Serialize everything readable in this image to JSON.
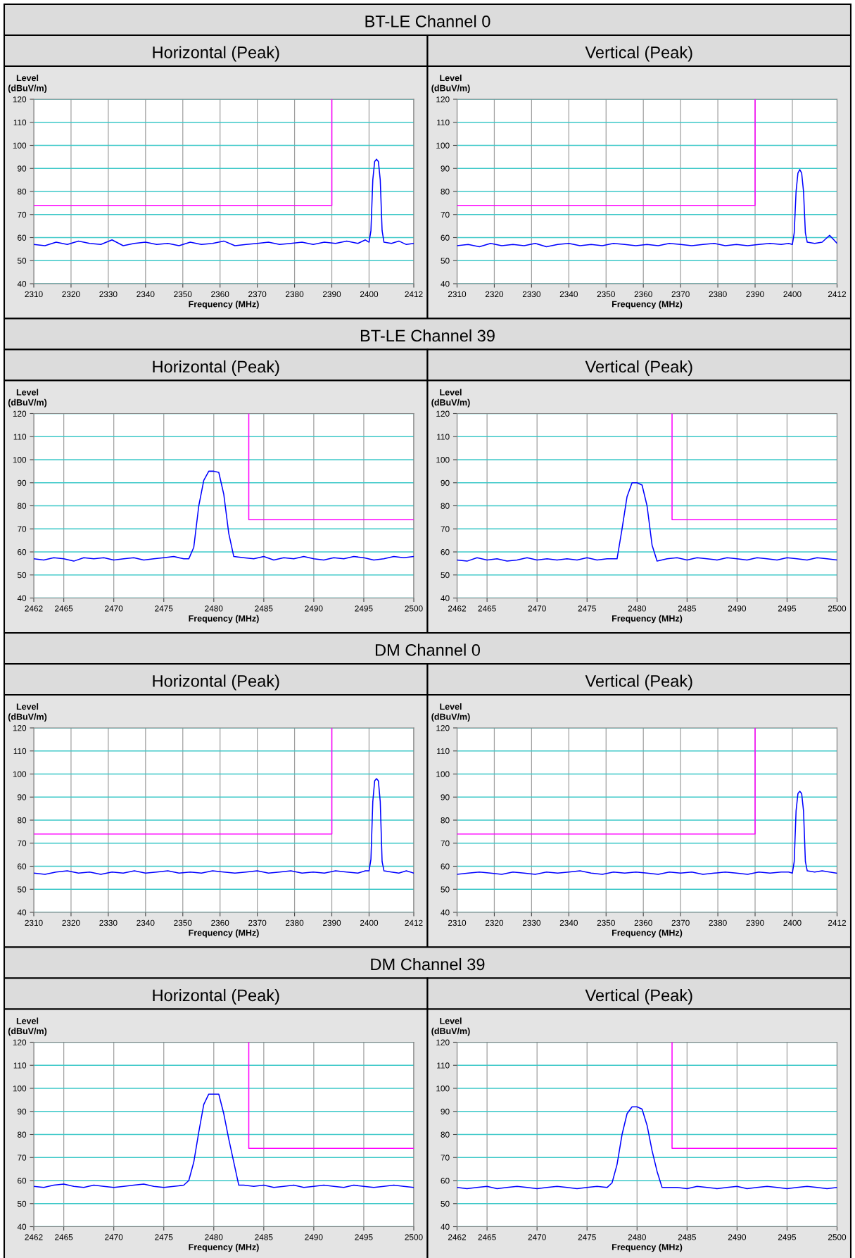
{
  "chart_data": [
    {
      "type": "line",
      "title": "BT-LE Channel 0",
      "subtitle": "Horizontal (Peak)",
      "xlabel": "Frequency (MHz)",
      "ylabel": "Level\n(dBuV/m)",
      "xlim": [
        2310,
        2412
      ],
      "xticks": [
        2310,
        2320,
        2330,
        2340,
        2350,
        2360,
        2370,
        2380,
        2390,
        2400,
        2412
      ],
      "ylim": [
        40,
        120
      ],
      "yticks": [
        40,
        50,
        60,
        70,
        80,
        90,
        100,
        110,
        120
      ],
      "grid": true,
      "series": [
        {
          "color": "#0000ff",
          "x": [
            2310,
            2313,
            2316,
            2319,
            2322,
            2325,
            2328,
            2331,
            2334,
            2337,
            2340,
            2343,
            2346,
            2349,
            2352,
            2355,
            2358,
            2361,
            2364,
            2367,
            2370,
            2373,
            2376,
            2379,
            2382,
            2385,
            2388,
            2391,
            2394,
            2397,
            2399,
            2400,
            2400.5,
            2401,
            2401.5,
            2402,
            2402.5,
            2403,
            2403.5,
            2404,
            2406,
            2408,
            2410,
            2412
          ],
          "values": [
            57,
            56.5,
            58,
            57,
            58.5,
            57.5,
            57,
            59,
            56.5,
            57.5,
            58,
            57,
            57.5,
            56.5,
            58,
            57,
            57.5,
            58.5,
            56.5,
            57,
            57.5,
            58,
            57,
            57.5,
            58,
            57,
            58,
            57.5,
            58.5,
            57.5,
            59,
            58,
            63,
            85,
            93,
            94,
            93,
            85,
            63,
            58,
            57.5,
            58.5,
            57,
            57.5
          ]
        },
        {
          "color": "#ff00ff",
          "x": [
            2310,
            2390,
            2390
          ],
          "values": [
            74,
            74,
            120
          ]
        }
      ]
    },
    {
      "type": "line",
      "subtitle": "Vertical (Peak)",
      "xlabel": "Frequency (MHz)",
      "ylabel": "Level\n(dBuV/m)",
      "xlim": [
        2310,
        2412
      ],
      "xticks": [
        2310,
        2320,
        2330,
        2340,
        2350,
        2360,
        2370,
        2380,
        2390,
        2400,
        2412
      ],
      "ylim": [
        40,
        120
      ],
      "yticks": [
        40,
        50,
        60,
        70,
        80,
        90,
        100,
        110,
        120
      ],
      "grid": true,
      "series": [
        {
          "color": "#0000ff",
          "x": [
            2310,
            2313,
            2316,
            2319,
            2322,
            2325,
            2328,
            2331,
            2334,
            2337,
            2340,
            2343,
            2346,
            2349,
            2352,
            2355,
            2358,
            2361,
            2364,
            2367,
            2370,
            2373,
            2376,
            2379,
            2382,
            2385,
            2388,
            2391,
            2394,
            2397,
            2399,
            2400,
            2400.5,
            2401,
            2401.5,
            2402,
            2402.5,
            2403,
            2403.5,
            2404,
            2406,
            2408,
            2410,
            2412
          ],
          "values": [
            56.5,
            57,
            56,
            57.5,
            56.5,
            57,
            56.5,
            57.5,
            56,
            57,
            57.5,
            56.5,
            57,
            56.5,
            57.5,
            57,
            56.5,
            57,
            56.5,
            57.5,
            57,
            56.5,
            57,
            57.5,
            56.5,
            57,
            56.5,
            57,
            57.5,
            57,
            57.5,
            57,
            62,
            80,
            88,
            89.5,
            88,
            80,
            62,
            58,
            57.5,
            58,
            61,
            57.5
          ]
        },
        {
          "color": "#ff00ff",
          "x": [
            2310,
            2390,
            2390
          ],
          "values": [
            74,
            74,
            120
          ]
        }
      ]
    },
    {
      "type": "line",
      "title": "BT-LE Channel 39",
      "subtitle": "Horizontal (Peak)",
      "xlabel": "Frequency (MHz)",
      "ylabel": "Level\n(dBuV/m)",
      "xlim": [
        2462,
        2500
      ],
      "xticks": [
        2462,
        2465,
        2470,
        2475,
        2480,
        2485,
        2490,
        2495,
        2500
      ],
      "ylim": [
        40,
        120
      ],
      "yticks": [
        40,
        50,
        60,
        70,
        80,
        90,
        100,
        110,
        120
      ],
      "grid": true,
      "series": [
        {
          "color": "#0000ff",
          "x": [
            2462,
            2463,
            2464,
            2465,
            2466,
            2467,
            2468,
            2469,
            2470,
            2471,
            2472,
            2473,
            2474,
            2475,
            2476,
            2477,
            2477.5,
            2478,
            2478.5,
            2479,
            2479.5,
            2480,
            2480.5,
            2481,
            2481.5,
            2482,
            2483,
            2484,
            2485,
            2486,
            2487,
            2488,
            2489,
            2490,
            2491,
            2492,
            2493,
            2494,
            2495,
            2496,
            2497,
            2498,
            2499,
            2500
          ],
          "values": [
            57,
            56.5,
            57.5,
            57,
            56,
            57.5,
            57,
            57.5,
            56.5,
            57,
            57.5,
            56.5,
            57,
            57.5,
            58,
            57,
            57,
            62,
            80,
            91,
            95,
            95,
            94.5,
            85,
            68,
            58,
            57.5,
            57,
            58,
            56.5,
            57.5,
            57,
            58,
            57,
            56.5,
            57.5,
            57,
            58,
            57.5,
            56.5,
            57,
            58,
            57.5,
            58
          ]
        },
        {
          "color": "#ff00ff",
          "x": [
            2483.5,
            2483.5,
            2500
          ],
          "values": [
            120,
            74,
            74
          ]
        }
      ]
    },
    {
      "type": "line",
      "subtitle": "Vertical (Peak)",
      "xlabel": "Frequency (MHz)",
      "ylabel": "Level\n(dBuV/m)",
      "xlim": [
        2462,
        2500
      ],
      "xticks": [
        2462,
        2465,
        2470,
        2475,
        2480,
        2485,
        2490,
        2495,
        2500
      ],
      "ylim": [
        40,
        120
      ],
      "yticks": [
        40,
        50,
        60,
        70,
        80,
        90,
        100,
        110,
        120
      ],
      "grid": true,
      "series": [
        {
          "color": "#0000ff",
          "x": [
            2462,
            2463,
            2464,
            2465,
            2466,
            2467,
            2468,
            2469,
            2470,
            2471,
            2472,
            2473,
            2474,
            2475,
            2476,
            2477,
            2477.5,
            2478,
            2478.5,
            2479,
            2479.5,
            2480,
            2480.5,
            2481,
            2481.5,
            2482,
            2483,
            2484,
            2485,
            2486,
            2487,
            2488,
            2489,
            2490,
            2491,
            2492,
            2493,
            2494,
            2495,
            2496,
            2497,
            2498,
            2499,
            2500
          ],
          "values": [
            56.5,
            56,
            57.5,
            56.5,
            57,
            56,
            56.5,
            57.5,
            56.5,
            57,
            56.5,
            57,
            56.5,
            57.5,
            56.5,
            57,
            57,
            57,
            70,
            84,
            90,
            90,
            89,
            80,
            63,
            56,
            57,
            57.5,
            56.5,
            57.5,
            57,
            56.5,
            57.5,
            57,
            56.5,
            57.5,
            57,
            56.5,
            57.5,
            57,
            56.5,
            57.5,
            57,
            56.5
          ]
        },
        {
          "color": "#ff00ff",
          "x": [
            2483.5,
            2483.5,
            2500
          ],
          "values": [
            120,
            74,
            74
          ]
        }
      ]
    },
    {
      "type": "line",
      "title": "DM Channel 0",
      "subtitle": "Horizontal (Peak)",
      "xlabel": "Frequency (MHz)",
      "ylabel": "Level\n(dBuV/m)",
      "xlim": [
        2310,
        2412
      ],
      "xticks": [
        2310,
        2320,
        2330,
        2340,
        2350,
        2360,
        2370,
        2380,
        2390,
        2400,
        2412
      ],
      "ylim": [
        40,
        120
      ],
      "yticks": [
        40,
        50,
        60,
        70,
        80,
        90,
        100,
        110,
        120
      ],
      "grid": true,
      "series": [
        {
          "color": "#0000ff",
          "x": [
            2310,
            2313,
            2316,
            2319,
            2322,
            2325,
            2328,
            2331,
            2334,
            2337,
            2340,
            2343,
            2346,
            2349,
            2352,
            2355,
            2358,
            2361,
            2364,
            2367,
            2370,
            2373,
            2376,
            2379,
            2382,
            2385,
            2388,
            2391,
            2394,
            2397,
            2399,
            2400,
            2400.5,
            2401,
            2401.5,
            2402,
            2402.5,
            2403,
            2403.5,
            2404,
            2406,
            2408,
            2410,
            2412
          ],
          "values": [
            57,
            56.5,
            57.5,
            58,
            57,
            57.5,
            56.5,
            57.5,
            57,
            58,
            57,
            57.5,
            58,
            57,
            57.5,
            57,
            58,
            57.5,
            57,
            57.5,
            58,
            57,
            57.5,
            58,
            57,
            57.5,
            57,
            58,
            57.5,
            57,
            58,
            58,
            63,
            88,
            97,
            98,
            97,
            88,
            62,
            58,
            57.5,
            57,
            58,
            57
          ]
        },
        {
          "color": "#ff00ff",
          "x": [
            2310,
            2390,
            2390
          ],
          "values": [
            74,
            74,
            120
          ]
        }
      ]
    },
    {
      "type": "line",
      "subtitle": "Vertical (Peak)",
      "xlabel": "Frequency (MHz)",
      "ylabel": "Level\n(dBuV/m)",
      "xlim": [
        2310,
        2412
      ],
      "xticks": [
        2310,
        2320,
        2330,
        2340,
        2350,
        2360,
        2370,
        2380,
        2390,
        2400,
        2412
      ],
      "ylim": [
        40,
        120
      ],
      "yticks": [
        40,
        50,
        60,
        70,
        80,
        90,
        100,
        110,
        120
      ],
      "grid": true,
      "series": [
        {
          "color": "#0000ff",
          "x": [
            2310,
            2313,
            2316,
            2319,
            2322,
            2325,
            2328,
            2331,
            2334,
            2337,
            2340,
            2343,
            2346,
            2349,
            2352,
            2355,
            2358,
            2361,
            2364,
            2367,
            2370,
            2373,
            2376,
            2379,
            2382,
            2385,
            2388,
            2391,
            2394,
            2397,
            2399,
            2400,
            2400.5,
            2401,
            2401.5,
            2402,
            2402.5,
            2403,
            2403.5,
            2404,
            2406,
            2408,
            2410,
            2412
          ],
          "values": [
            56.5,
            57,
            57.5,
            57,
            56.5,
            57.5,
            57,
            56.5,
            57.5,
            57,
            57.5,
            58,
            57,
            56.5,
            57.5,
            57,
            57.5,
            57,
            56.5,
            57.5,
            57,
            57.5,
            56.5,
            57,
            57.5,
            57,
            56.5,
            57.5,
            57,
            57.5,
            57.5,
            57,
            62,
            84,
            91.5,
            92.5,
            91.5,
            84,
            62,
            58,
            57.5,
            58,
            57.5,
            57
          ]
        },
        {
          "color": "#ff00ff",
          "x": [
            2310,
            2390,
            2390
          ],
          "values": [
            74,
            74,
            120
          ]
        }
      ]
    },
    {
      "type": "line",
      "title": "DM Channel 39",
      "subtitle": "Horizontal (Peak)",
      "xlabel": "Frequency (MHz)",
      "ylabel": "Level\n(dBuV/m)",
      "xlim": [
        2462,
        2500
      ],
      "xticks": [
        2462,
        2465,
        2470,
        2475,
        2480,
        2485,
        2490,
        2495,
        2500
      ],
      "ylim": [
        40,
        120
      ],
      "yticks": [
        40,
        50,
        60,
        70,
        80,
        90,
        100,
        110,
        120
      ],
      "grid": true,
      "series": [
        {
          "color": "#0000ff",
          "x": [
            2462,
            2463,
            2464,
            2465,
            2466,
            2467,
            2468,
            2469,
            2470,
            2471,
            2472,
            2473,
            2474,
            2475,
            2476,
            2477,
            2477.5,
            2478,
            2478.5,
            2479,
            2479.5,
            2480,
            2480.5,
            2481,
            2481.5,
            2482,
            2482.5,
            2483,
            2484,
            2485,
            2486,
            2487,
            2488,
            2489,
            2490,
            2491,
            2492,
            2493,
            2494,
            2495,
            2496,
            2497,
            2498,
            2499,
            2500
          ],
          "values": [
            57.5,
            57,
            58,
            58.5,
            57.5,
            57,
            58,
            57.5,
            57,
            57.5,
            58,
            58.5,
            57.5,
            57,
            57.5,
            58,
            60,
            68,
            81,
            93,
            97.5,
            97.5,
            97.5,
            89,
            78,
            68,
            58,
            58,
            57.5,
            58,
            57,
            57.5,
            58,
            57,
            57.5,
            58,
            57.5,
            57,
            58,
            57.5,
            57,
            57.5,
            58,
            57.5,
            57
          ]
        },
        {
          "color": "#ff00ff",
          "x": [
            2483.5,
            2483.5,
            2500
          ],
          "values": [
            120,
            74,
            74
          ]
        }
      ]
    },
    {
      "type": "line",
      "subtitle": "Vertical (Peak)",
      "xlabel": "Frequency (MHz)",
      "ylabel": "Level\n(dBuV/m)",
      "xlim": [
        2462,
        2500
      ],
      "xticks": [
        2462,
        2465,
        2470,
        2475,
        2480,
        2485,
        2490,
        2495,
        2500
      ],
      "ylim": [
        40,
        120
      ],
      "yticks": [
        40,
        50,
        60,
        70,
        80,
        90,
        100,
        110,
        120
      ],
      "grid": true,
      "series": [
        {
          "color": "#0000ff",
          "x": [
            2462,
            2463,
            2464,
            2465,
            2466,
            2467,
            2468,
            2469,
            2470,
            2471,
            2472,
            2473,
            2474,
            2475,
            2476,
            2477,
            2477.5,
            2478,
            2478.5,
            2479,
            2479.5,
            2480,
            2480.5,
            2481,
            2481.5,
            2482,
            2482.5,
            2483,
            2484,
            2485,
            2486,
            2487,
            2488,
            2489,
            2490,
            2491,
            2492,
            2493,
            2494,
            2495,
            2496,
            2497,
            2498,
            2499,
            2500
          ],
          "values": [
            57,
            56.5,
            57,
            57.5,
            56.5,
            57,
            57.5,
            57,
            56.5,
            57,
            57.5,
            57,
            56.5,
            57,
            57.5,
            57,
            59,
            67,
            80,
            89,
            92,
            92,
            91,
            84,
            73,
            64,
            57,
            57,
            57,
            56.5,
            57.5,
            57,
            56.5,
            57,
            57.5,
            56.5,
            57,
            57.5,
            57,
            56.5,
            57,
            57.5,
            57,
            56.5,
            57
          ]
        },
        {
          "color": "#ff00ff",
          "x": [
            2483.5,
            2483.5,
            2500
          ],
          "values": [
            120,
            74,
            74
          ]
        }
      ]
    }
  ]
}
